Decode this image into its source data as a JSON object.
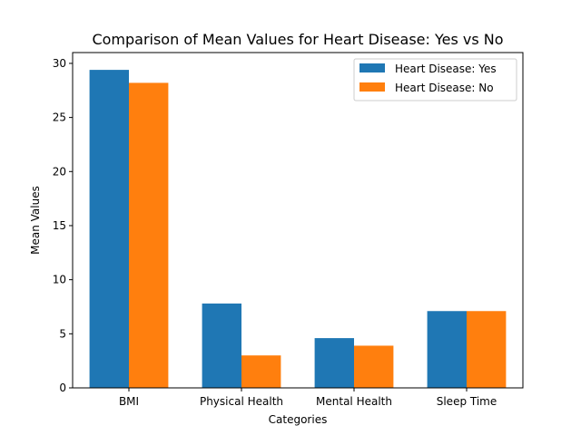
{
  "chart_data": {
    "type": "bar",
    "title": "Comparison of Mean Values for Heart Disease: Yes vs No",
    "xlabel": "Categories",
    "ylabel": "Mean Values",
    "categories": [
      "BMI",
      "Physical Health",
      "Mental Health",
      "Sleep Time"
    ],
    "series": [
      {
        "name": "Heart Disease: Yes",
        "values": [
          29.4,
          7.8,
          4.6,
          7.1
        ],
        "color": "#1f77b4"
      },
      {
        "name": "Heart Disease: No",
        "values": [
          28.2,
          3.0,
          3.9,
          7.1
        ],
        "color": "#ff7f0e"
      }
    ],
    "ylim": [
      0,
      31
    ],
    "yticks": [
      0,
      5,
      10,
      15,
      20,
      25,
      30
    ],
    "grid": false,
    "legend_position": "top-right"
  }
}
